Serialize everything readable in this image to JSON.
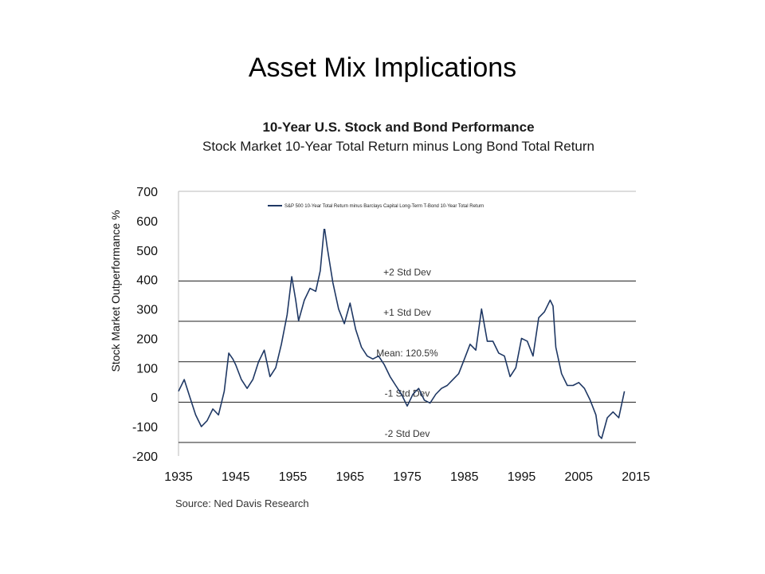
{
  "slide": {
    "title": "Asset Mix Implications"
  },
  "chart_data": {
    "type": "line",
    "title": "10-Year U.S. Stock and Bond Performance",
    "subtitle": "Stock Market 10-Year Total Return minus Long Bond Total Return",
    "ylabel": "Stock Market Outperformance %",
    "xlim": [
      1935,
      2015
    ],
    "ylim": [
      -200,
      700
    ],
    "xticks": [
      1935,
      1945,
      1955,
      1965,
      1975,
      1985,
      1995,
      2005,
      2015
    ],
    "yticks": [
      -200,
      -100,
      0,
      100,
      200,
      300,
      400,
      500,
      600,
      700
    ],
    "legend_position": "top",
    "grid": false,
    "series": [
      {
        "name": "S&P 500 10-Year Total Return minus Barclays Capital Long-Term T-Bond 10-Year Total Return",
        "color": "#1f3864",
        "x": [
          1935.0,
          1936.0,
          1937.0,
          1938.0,
          1939.0,
          1940.0,
          1941.0,
          1942.0,
          1943.0,
          1943.8,
          1944.5,
          1945.0,
          1946.0,
          1947.0,
          1948.0,
          1949.0,
          1950.0,
          1951.0,
          1952.0,
          1953.0,
          1954.0,
          1954.8,
          1955.5,
          1956.0,
          1957.0,
          1958.0,
          1959.0,
          1959.8,
          1960.5,
          1961.0,
          1962.0,
          1963.0,
          1964.0,
          1965.0,
          1966.0,
          1967.0,
          1968.0,
          1969.0,
          1970.0,
          1971.0,
          1972.0,
          1973.0,
          1974.0,
          1975.0,
          1976.0,
          1977.0,
          1978.0,
          1979.0,
          1980.0,
          1981.0,
          1982.0,
          1983.0,
          1984.0,
          1985.0,
          1986.0,
          1987.0,
          1988.0,
          1989.0,
          1990.0,
          1991.0,
          1992.0,
          1993.0,
          1994.0,
          1995.0,
          1996.0,
          1997.0,
          1998.0,
          1999.0,
          2000.0,
          2000.5,
          2001.0,
          2002.0,
          2003.0,
          2004.0,
          2005.0,
          2006.0,
          2007.0,
          2008.0,
          2008.5,
          2009.0,
          2010.0,
          2011.0,
          2012.0,
          2013.0
        ],
        "values": [
          20,
          60,
          0,
          -60,
          -100,
          -80,
          -40,
          -60,
          20,
          150,
          130,
          110,
          60,
          30,
          60,
          120,
          160,
          70,
          100,
          180,
          280,
          410,
          330,
          260,
          330,
          370,
          360,
          430,
          580,
          510,
          390,
          300,
          250,
          320,
          230,
          170,
          140,
          130,
          140,
          110,
          70,
          40,
          10,
          -30,
          10,
          30,
          -10,
          -20,
          10,
          30,
          40,
          60,
          80,
          130,
          180,
          160,
          300,
          190,
          190,
          150,
          140,
          70,
          100,
          200,
          190,
          140,
          270,
          290,
          330,
          310,
          170,
          80,
          40,
          40,
          50,
          30,
          -10,
          -60,
          -130,
          -140,
          -70,
          -50,
          -70,
          20
        ]
      }
    ],
    "reference_lines": [
      {
        "label": "+2 Std Dev",
        "value": 395
      },
      {
        "label": "+1 Std Dev",
        "value": 258
      },
      {
        "label": "Mean: 120.5%",
        "value": 120.5
      },
      {
        "label": "-1 Std Dev",
        "value": -17
      },
      {
        "label": "-2 Std Dev",
        "value": -154
      }
    ]
  },
  "source": "Source: Ned Davis Research"
}
